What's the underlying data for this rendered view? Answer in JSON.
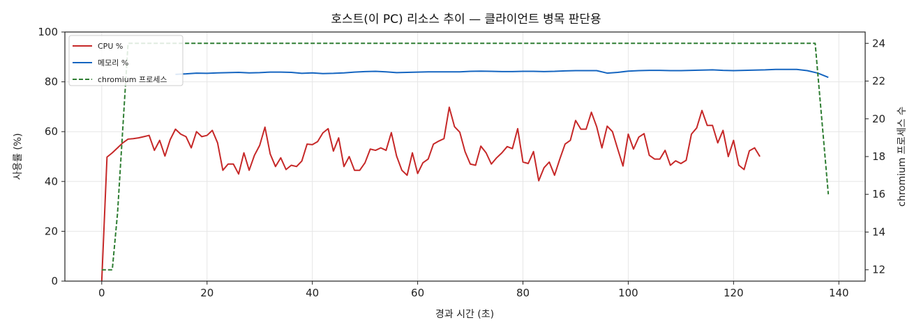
{
  "chart_data": {
    "type": "line",
    "title": "호스트(이 PC) 리소스 추이 — 클라이언트 병목 판단용",
    "xlabel": "경과 시간 (초)",
    "ylabel": "사용률 (%)",
    "y2label": "chromium 프로세스 수",
    "xlim": [
      -7,
      145
    ],
    "ylim": [
      0,
      100
    ],
    "y2lim": [
      11.4,
      24.6
    ],
    "x_ticks": [
      0,
      20,
      40,
      60,
      80,
      100,
      120,
      140
    ],
    "y_ticks": [
      0,
      20,
      40,
      60,
      80,
      100
    ],
    "y2_ticks": [
      12,
      14,
      16,
      18,
      20,
      22,
      24
    ],
    "grid": true,
    "legend_position": "top-left",
    "series": [
      {
        "name": "CPU %",
        "axis": "left",
        "color": "#c62828",
        "style": "solid",
        "points": [
          [
            0,
            0
          ],
          [
            1,
            49.8
          ],
          [
            2,
            51.5
          ],
          [
            3,
            53.5
          ],
          [
            4,
            55.5
          ],
          [
            5,
            57
          ],
          [
            6,
            57.2
          ],
          [
            7,
            57.5
          ],
          [
            8,
            58
          ],
          [
            9,
            58.5
          ],
          [
            10,
            52.5
          ],
          [
            11,
            56.5
          ],
          [
            12,
            50.2
          ],
          [
            13,
            56.8
          ],
          [
            14,
            61
          ],
          [
            15,
            59
          ],
          [
            16,
            58
          ],
          [
            17,
            53.5
          ],
          [
            18,
            60
          ],
          [
            19,
            58
          ],
          [
            20,
            58.5
          ],
          [
            21,
            60.5
          ],
          [
            22,
            55.5
          ],
          [
            23,
            44.5
          ],
          [
            24,
            47
          ],
          [
            25,
            47
          ],
          [
            26,
            43
          ],
          [
            27,
            51.5
          ],
          [
            28,
            44.5
          ],
          [
            29,
            50.5
          ],
          [
            30,
            54.5
          ],
          [
            31,
            61.8
          ],
          [
            32,
            51
          ],
          [
            33,
            46
          ],
          [
            34,
            49.5
          ],
          [
            35,
            44.8
          ],
          [
            36,
            46.5
          ],
          [
            37,
            46
          ],
          [
            38,
            48.2
          ],
          [
            39,
            55
          ],
          [
            40,
            54.8
          ],
          [
            41,
            56
          ],
          [
            42,
            59.5
          ],
          [
            43,
            61.2
          ],
          [
            44,
            52.2
          ],
          [
            45,
            57.5
          ],
          [
            46,
            46
          ],
          [
            47,
            50
          ],
          [
            48,
            44.5
          ],
          [
            49,
            44.5
          ],
          [
            50,
            47.5
          ],
          [
            51,
            53
          ],
          [
            52,
            52.5
          ],
          [
            53,
            53.5
          ],
          [
            54,
            52.5
          ],
          [
            55,
            59.6
          ],
          [
            56,
            50.2
          ],
          [
            57,
            44.5
          ],
          [
            58,
            42.5
          ],
          [
            59,
            51.5
          ],
          [
            60,
            43.2
          ],
          [
            61,
            47.5
          ],
          [
            62,
            49
          ],
          [
            63,
            55
          ],
          [
            64,
            56.2
          ],
          [
            65,
            57.2
          ],
          [
            66,
            69.8
          ],
          [
            67,
            62
          ],
          [
            68,
            59.8
          ],
          [
            69,
            52
          ],
          [
            70,
            47
          ],
          [
            71,
            46.5
          ],
          [
            72,
            54.2
          ],
          [
            73,
            51.5
          ],
          [
            74,
            47
          ],
          [
            75,
            49.5
          ],
          [
            76,
            51.5
          ],
          [
            77,
            54
          ],
          [
            78,
            53.2
          ],
          [
            79,
            61.2
          ],
          [
            80,
            47.8
          ],
          [
            81,
            47.2
          ],
          [
            82,
            52
          ],
          [
            83,
            40.3
          ],
          [
            84,
            45.5
          ],
          [
            85,
            47.8
          ],
          [
            86,
            42.5
          ],
          [
            87,
            49
          ],
          [
            88,
            55
          ],
          [
            89,
            56.5
          ],
          [
            90,
            64.5
          ],
          [
            91,
            61
          ],
          [
            92,
            61
          ],
          [
            93,
            67.8
          ],
          [
            94,
            62
          ],
          [
            95,
            53.5
          ],
          [
            96,
            62.2
          ],
          [
            97,
            60
          ],
          [
            98,
            53
          ],
          [
            99,
            46.2
          ],
          [
            100,
            59
          ],
          [
            101,
            53
          ],
          [
            102,
            57.8
          ],
          [
            103,
            59.2
          ],
          [
            104,
            50.5
          ],
          [
            105,
            49
          ],
          [
            106,
            49
          ],
          [
            107,
            52.5
          ],
          [
            108,
            46.5
          ],
          [
            109,
            48.3
          ],
          [
            110,
            47.2
          ],
          [
            111,
            48.5
          ],
          [
            112,
            59
          ],
          [
            113,
            61.5
          ],
          [
            114,
            68.5
          ],
          [
            115,
            62.5
          ],
          [
            116,
            62.5
          ],
          [
            117,
            55.5
          ],
          [
            118,
            60.5
          ],
          [
            119,
            50
          ],
          [
            120,
            56.5
          ],
          [
            121,
            46.5
          ],
          [
            122,
            44.8
          ],
          [
            123,
            52.3
          ],
          [
            124,
            53.5
          ],
          [
            125,
            50
          ]
        ]
      },
      {
        "name": "메모리 %",
        "axis": "left",
        "color": "#1565c0",
        "style": "solid",
        "points": [
          [
            14,
            83
          ],
          [
            16,
            83.2
          ],
          [
            18,
            83.5
          ],
          [
            20,
            83.4
          ],
          [
            22,
            83.6
          ],
          [
            24,
            83.7
          ],
          [
            26,
            83.8
          ],
          [
            28,
            83.6
          ],
          [
            30,
            83.7
          ],
          [
            32,
            83.9
          ],
          [
            34,
            83.9
          ],
          [
            36,
            83.8
          ],
          [
            38,
            83.4
          ],
          [
            40,
            83.6
          ],
          [
            42,
            83.3
          ],
          [
            44,
            83.4
          ],
          [
            46,
            83.6
          ],
          [
            48,
            83.9
          ],
          [
            50,
            84.1
          ],
          [
            52,
            84.2
          ],
          [
            54,
            84
          ],
          [
            56,
            83.7
          ],
          [
            58,
            83.8
          ],
          [
            60,
            83.9
          ],
          [
            62,
            84
          ],
          [
            64,
            84
          ],
          [
            66,
            84
          ],
          [
            68,
            84
          ],
          [
            70,
            84.2
          ],
          [
            72,
            84.3
          ],
          [
            74,
            84.2
          ],
          [
            76,
            84.1
          ],
          [
            78,
            84.1
          ],
          [
            80,
            84.2
          ],
          [
            82,
            84.2
          ],
          [
            84,
            84.1
          ],
          [
            86,
            84.2
          ],
          [
            88,
            84.4
          ],
          [
            90,
            84.5
          ],
          [
            92,
            84.5
          ],
          [
            94,
            84.5
          ],
          [
            96,
            83.5
          ],
          [
            98,
            83.8
          ],
          [
            100,
            84.3
          ],
          [
            102,
            84.5
          ],
          [
            104,
            84.6
          ],
          [
            106,
            84.6
          ],
          [
            108,
            84.5
          ],
          [
            110,
            84.5
          ],
          [
            112,
            84.6
          ],
          [
            114,
            84.7
          ],
          [
            116,
            84.8
          ],
          [
            118,
            84.6
          ],
          [
            120,
            84.5
          ],
          [
            122,
            84.6
          ],
          [
            124,
            84.7
          ],
          [
            126,
            84.8
          ],
          [
            128,
            85
          ],
          [
            130,
            85
          ],
          [
            132,
            85
          ],
          [
            134,
            84.5
          ],
          [
            136,
            83.5
          ],
          [
            138,
            81.8
          ]
        ]
      },
      {
        "name": "chromium 프로세스",
        "axis": "right",
        "color": "#2e7d32",
        "style": "dashed",
        "points": [
          [
            0,
            12
          ],
          [
            2,
            12
          ],
          [
            3,
            15
          ],
          [
            5,
            24
          ],
          [
            135.5,
            24
          ],
          [
            138,
            16
          ]
        ]
      }
    ]
  }
}
